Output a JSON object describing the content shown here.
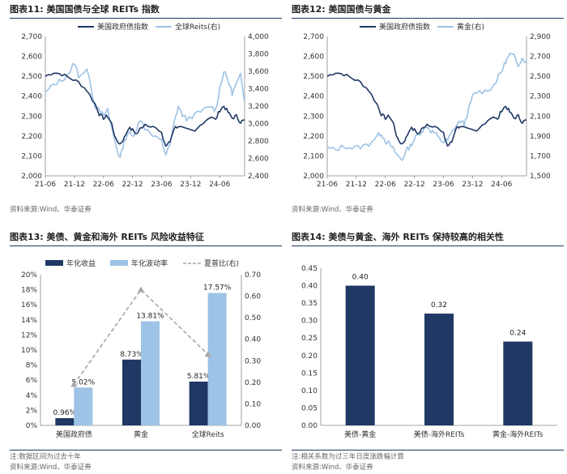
{
  "panels": {
    "p11": {
      "title": "图表11:  美国国债与全球 REITs 指数",
      "source": "资料来源:Wind、华泰证券"
    },
    "p12": {
      "title": "图表12:  美国国债与黄金",
      "source": "资料来源:Wind、华泰证券"
    },
    "p13": {
      "title": "图表13:  美债、黄金和海外 REITs 风险收益特征",
      "note": "注:数据区间为过去十年",
      "source": "资料来源:Wind、华泰证券"
    },
    "p14": {
      "title": "图表14:  美债与黄金、海外 REITs 保持较高的相关性",
      "note": "注:相关系数为过三年日度涨跌幅计算",
      "source": "资料来源:Wind、华泰证券"
    }
  },
  "colors": {
    "dark": "#1f3864",
    "light": "#9dc3e6",
    "gray": "#a6a6a6"
  },
  "chart_data": [
    {
      "id": "chart11",
      "type": "line",
      "x_ticks": [
        "21-06",
        "21-12",
        "22-06",
        "22-12",
        "23-06",
        "23-12",
        "24-06"
      ],
      "left_axis": {
        "min": 2000,
        "max": 2700,
        "ticks": [
          "2,000",
          "2,100",
          "2,200",
          "2,300",
          "2,400",
          "2,500",
          "2,600",
          "2,700"
        ]
      },
      "right_axis": {
        "min": 2400,
        "max": 4000,
        "ticks": [
          "2,400",
          "2,600",
          "2,800",
          "3,000",
          "3,200",
          "3,400",
          "3,600",
          "3,800",
          "4,000"
        ]
      },
      "series": [
        {
          "name": "美国政府债指数",
          "axis": "left",
          "color": "#1f3864",
          "keypoints": [
            [
              0,
              2500
            ],
            [
              2,
              2520
            ],
            [
              4,
              2510
            ],
            [
              6,
              2490
            ],
            [
              8,
              2470
            ],
            [
              10,
              2430
            ],
            [
              12,
              2360
            ],
            [
              13,
              2310
            ],
            [
              14,
              2290
            ],
            [
              15,
              2300
            ],
            [
              16,
              2260
            ],
            [
              17,
              2180
            ],
            [
              18,
              2160
            ],
            [
              19,
              2190
            ],
            [
              20,
              2240
            ],
            [
              21,
              2230
            ],
            [
              22,
              2210
            ],
            [
              23,
              2240
            ],
            [
              24,
              2260
            ],
            [
              26,
              2250
            ],
            [
              28,
              2210
            ],
            [
              29,
              2150
            ],
            [
              30,
              2170
            ],
            [
              31,
              2240
            ],
            [
              32,
              2250
            ],
            [
              34,
              2230
            ],
            [
              36,
              2220
            ],
            [
              38,
              2270
            ],
            [
              40,
              2300
            ],
            [
              41,
              2280
            ],
            [
              42,
              2330
            ],
            [
              43,
              2350
            ],
            [
              44,
              2320
            ],
            [
              45,
              2290
            ],
            [
              46,
              2300
            ],
            [
              47,
              2270
            ],
            [
              48,
              2280
            ]
          ]
        },
        {
          "name": "全球Reits(右)",
          "axis": "right",
          "color": "#9dc3e6",
          "keypoints": [
            [
              0,
              3350
            ],
            [
              2,
              3450
            ],
            [
              4,
              3500
            ],
            [
              6,
              3600
            ],
            [
              7,
              3700
            ],
            [
              8,
              3550
            ],
            [
              10,
              3620
            ],
            [
              12,
              3200
            ],
            [
              13,
              3180
            ],
            [
              14,
              3080
            ],
            [
              15,
              3150
            ],
            [
              16,
              2950
            ],
            [
              17,
              2750
            ],
            [
              18,
              2600
            ],
            [
              19,
              2800
            ],
            [
              20,
              2900
            ],
            [
              21,
              2850
            ],
            [
              22,
              2950
            ],
            [
              23,
              3050
            ],
            [
              24,
              2950
            ],
            [
              26,
              2850
            ],
            [
              28,
              2800
            ],
            [
              29,
              2650
            ],
            [
              30,
              2750
            ],
            [
              31,
              3000
            ],
            [
              32,
              3200
            ],
            [
              33,
              3100
            ],
            [
              34,
              3050
            ],
            [
              36,
              3100
            ],
            [
              38,
              3150
            ],
            [
              40,
              3200
            ],
            [
              41,
              3150
            ],
            [
              42,
              3400
            ],
            [
              43,
              3600
            ],
            [
              44,
              3500
            ],
            [
              45,
              3350
            ],
            [
              46,
              3450
            ],
            [
              47,
              3550
            ],
            [
              48,
              3250
            ]
          ]
        }
      ]
    },
    {
      "id": "chart12",
      "type": "line",
      "x_ticks": [
        "21-06",
        "21-12",
        "22-06",
        "22-12",
        "23-06",
        "23-12",
        "24-06"
      ],
      "left_axis": {
        "min": 2000,
        "max": 2700,
        "ticks": [
          "2,000",
          "2,100",
          "2,200",
          "2,300",
          "2,400",
          "2,500",
          "2,600",
          "2,700"
        ]
      },
      "right_axis": {
        "min": 1500,
        "max": 2900,
        "ticks": [
          "1,500",
          "1,700",
          "1,900",
          "2,100",
          "2,300",
          "2,500",
          "2,700",
          "2,900"
        ]
      },
      "series": [
        {
          "name": "美国政府债指数",
          "axis": "left",
          "color": "#1f3864",
          "keypoints": [
            [
              0,
              2500
            ],
            [
              2,
              2520
            ],
            [
              4,
              2510
            ],
            [
              6,
              2490
            ],
            [
              8,
              2470
            ],
            [
              10,
              2430
            ],
            [
              12,
              2360
            ],
            [
              13,
              2310
            ],
            [
              14,
              2290
            ],
            [
              15,
              2300
            ],
            [
              16,
              2260
            ],
            [
              17,
              2180
            ],
            [
              18,
              2160
            ],
            [
              19,
              2190
            ],
            [
              20,
              2240
            ],
            [
              21,
              2230
            ],
            [
              22,
              2210
            ],
            [
              23,
              2240
            ],
            [
              24,
              2260
            ],
            [
              26,
              2250
            ],
            [
              28,
              2210
            ],
            [
              29,
              2150
            ],
            [
              30,
              2170
            ],
            [
              31,
              2240
            ],
            [
              32,
              2250
            ],
            [
              34,
              2230
            ],
            [
              36,
              2220
            ],
            [
              38,
              2270
            ],
            [
              40,
              2300
            ],
            [
              41,
              2280
            ],
            [
              42,
              2330
            ],
            [
              43,
              2350
            ],
            [
              44,
              2320
            ],
            [
              45,
              2290
            ],
            [
              46,
              2300
            ],
            [
              47,
              2270
            ],
            [
              48,
              2280
            ]
          ]
        },
        {
          "name": "黄金(右)",
          "axis": "right",
          "color": "#9dc3e6",
          "keypoints": [
            [
              0,
              1780
            ],
            [
              2,
              1760
            ],
            [
              4,
              1800
            ],
            [
              6,
              1780
            ],
            [
              8,
              1790
            ],
            [
              10,
              1820
            ],
            [
              12,
              1900
            ],
            [
              13,
              1930
            ],
            [
              14,
              1850
            ],
            [
              15,
              1820
            ],
            [
              16,
              1760
            ],
            [
              17,
              1700
            ],
            [
              18,
              1660
            ],
            [
              19,
              1750
            ],
            [
              20,
              1800
            ],
            [
              21,
              1870
            ],
            [
              22,
              1920
            ],
            [
              23,
              1960
            ],
            [
              24,
              2000
            ],
            [
              25,
              1950
            ],
            [
              26,
              1930
            ],
            [
              27,
              1870
            ],
            [
              28,
              1840
            ],
            [
              29,
              1860
            ],
            [
              30,
              1930
            ],
            [
              31,
              2000
            ],
            [
              32,
              2050
            ],
            [
              33,
              2020
            ],
            [
              34,
              2150
            ],
            [
              35,
              2300
            ],
            [
              36,
              2340
            ],
            [
              38,
              2350
            ],
            [
              40,
              2400
            ],
            [
              41,
              2480
            ],
            [
              42,
              2550
            ],
            [
              43,
              2650
            ],
            [
              44,
              2720
            ],
            [
              45,
              2700
            ],
            [
              46,
              2620
            ],
            [
              47,
              2680
            ],
            [
              48,
              2650
            ]
          ]
        }
      ]
    },
    {
      "id": "chart13",
      "type": "bar",
      "categories": [
        "美国政府债",
        "黄金",
        "全球Reits"
      ],
      "series": [
        {
          "name": "年化收益",
          "color": "#1f3864",
          "values": [
            0.96,
            8.73,
            5.81
          ],
          "labels": [
            "0.96%",
            "8.73%",
            "5.81%"
          ]
        },
        {
          "name": "年化波动率",
          "color": "#9dc3e6",
          "values": [
            5.02,
            13.81,
            17.57
          ],
          "labels": [
            "5.02%",
            "13.81%",
            "17.57%"
          ]
        },
        {
          "name": "夏普比(右)",
          "type": "line",
          "axis": "right",
          "color": "#a6a6a6",
          "values": [
            0.19,
            0.63,
            0.33
          ]
        }
      ],
      "left_axis": {
        "min": 0,
        "max": 20,
        "ticks": [
          "0%",
          "2%",
          "4%",
          "6%",
          "8%",
          "10%",
          "12%",
          "14%",
          "16%",
          "18%",
          "20%"
        ]
      },
      "right_axis": {
        "min": 0,
        "max": 0.7,
        "ticks": [
          "0.00",
          "0.10",
          "0.20",
          "0.30",
          "0.40",
          "0.50",
          "0.60",
          "0.70"
        ]
      }
    },
    {
      "id": "chart14",
      "type": "bar",
      "categories": [
        "美债-黄金",
        "美债-海外REITs",
        "黄金-海外REITs"
      ],
      "values": [
        0.4,
        0.32,
        0.24
      ],
      "labels": [
        "0.40",
        "0.32",
        "0.24"
      ],
      "y_axis": {
        "min": 0,
        "max": 0.45,
        "ticks": [
          "0.00",
          "0.05",
          "0.10",
          "0.15",
          "0.20",
          "0.25",
          "0.30",
          "0.35",
          "0.40",
          "0.45"
        ]
      }
    }
  ]
}
